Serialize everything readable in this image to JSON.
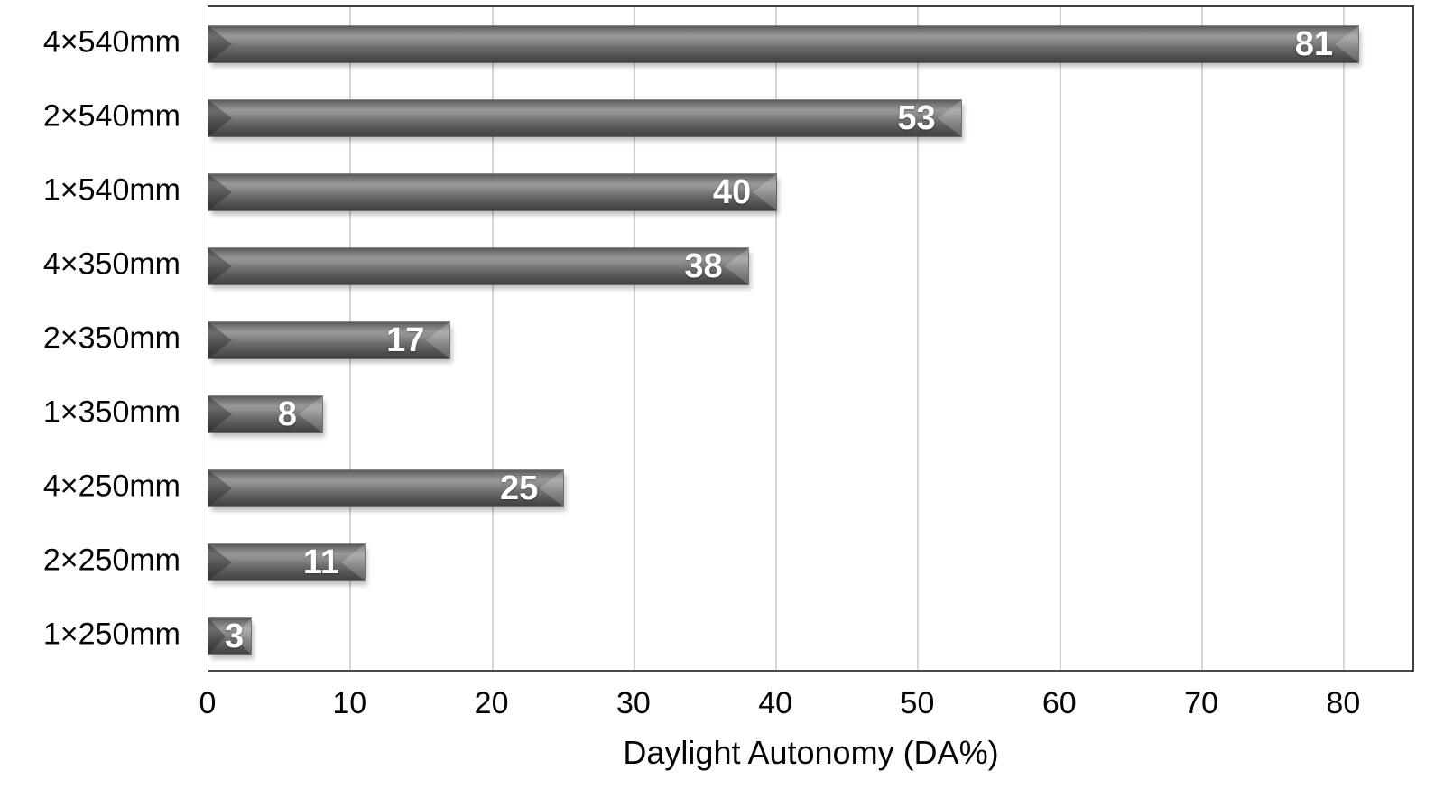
{
  "chart_data": {
    "type": "bar",
    "orientation": "horizontal",
    "title": "",
    "xlabel": "Daylight Autonomy (DA%)",
    "ylabel": "",
    "categories": [
      "4×540mm",
      "2×540mm",
      "1×540mm",
      "4×350mm",
      "2×350mm",
      "1×350mm",
      "4×250mm",
      "2×250mm",
      "1×250mm"
    ],
    "values": [
      81,
      53,
      40,
      38,
      17,
      8,
      25,
      11,
      3
    ],
    "xlim": [
      0,
      85
    ],
    "xticks": [
      0,
      10,
      20,
      30,
      40,
      50,
      60,
      70,
      80
    ],
    "grid": "vertical",
    "legend": "none",
    "colors": {
      "bar_base": "#6e6e6e",
      "bar_highlight": "#989898",
      "bar_shadow_edge": "#3f3f3f",
      "gridline": "#d6d6d6",
      "plot_border": "#3f3f3f",
      "value_label": "#ffffff",
      "axis_text": "#050505",
      "background": "#ffffff"
    }
  }
}
